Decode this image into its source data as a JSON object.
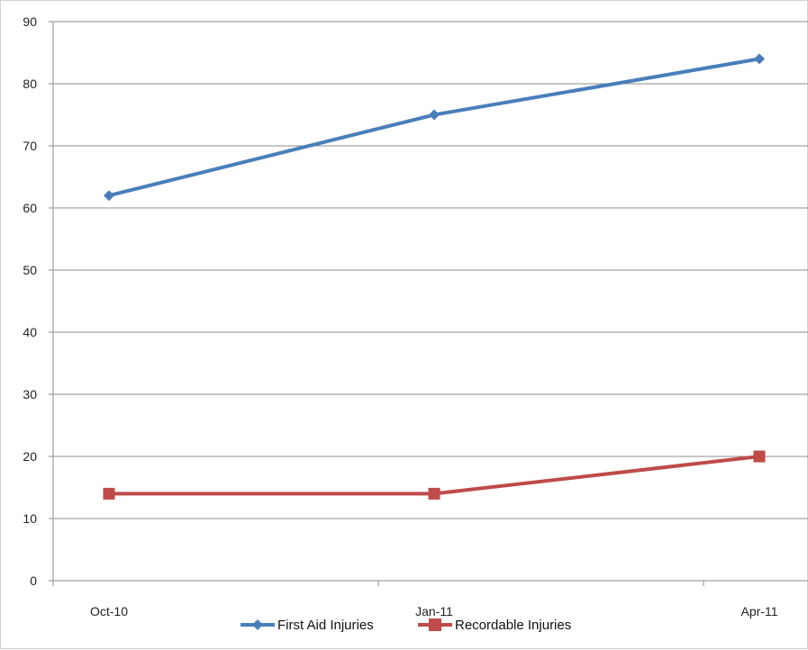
{
  "chart_data": {
    "type": "line",
    "categories": [
      "Oct-10",
      "Jan-11",
      "Apr-11"
    ],
    "ylim": [
      0,
      90
    ],
    "yticks": [
      0,
      10,
      20,
      30,
      40,
      50,
      60,
      70,
      80,
      90
    ],
    "grid": true,
    "legend_position": "bottom",
    "series": [
      {
        "name": "First Aid Injuries",
        "values": [
          62,
          75,
          84
        ],
        "color": "#4a7ebb",
        "marker": "diamond"
      },
      {
        "name": "Recordable Injuries",
        "values": [
          14,
          14,
          20
        ],
        "color": "#be4b48",
        "marker": "square"
      }
    ]
  }
}
